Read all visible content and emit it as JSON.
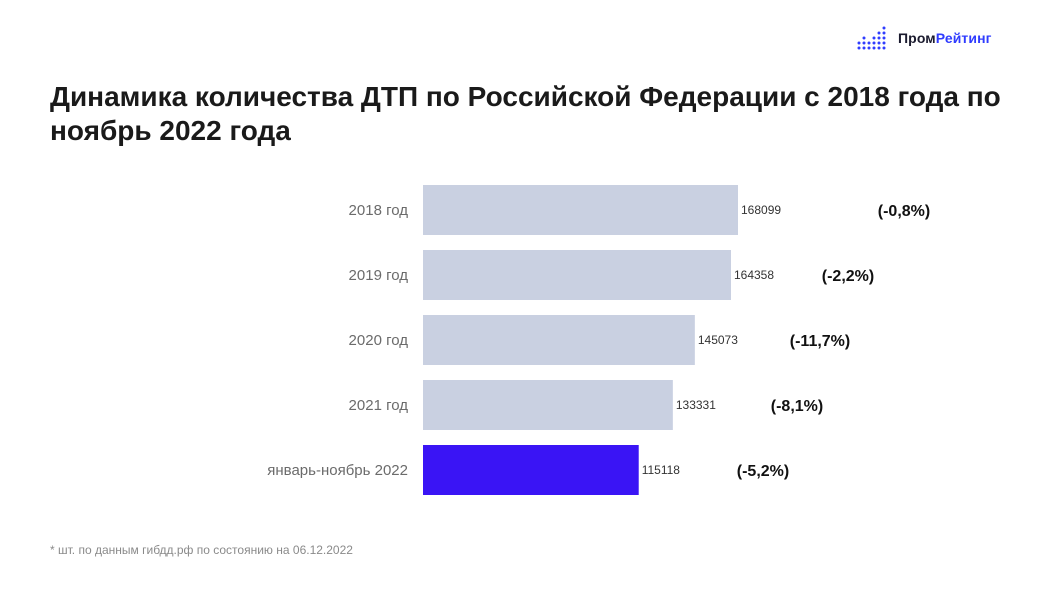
{
  "brand": {
    "name_part1": "Пром",
    "name_part2": "Рейтинг",
    "icon": "bar-dots-logo-icon",
    "accent_color": "#2f3cff"
  },
  "chart_data": {
    "type": "bar",
    "orientation": "horizontal",
    "title": "Динамика количества ДТП по Российской Федерации с 2018 года по ноябрь 2022 года",
    "categories": [
      "2018 год",
      "2019 год",
      "2020 год",
      "2021 год",
      "январь-ноябрь 2022"
    ],
    "values": [
      168099,
      164358,
      145073,
      133331,
      115118
    ],
    "change_labels": [
      "(-0,8%)",
      "(-2,2%)",
      "(-11,7%)",
      "(-8,1%)",
      "(-5,2%)"
    ],
    "bar_colors": [
      "#c9d0e1",
      "#c9d0e1",
      "#c9d0e1",
      "#c9d0e1",
      "#3a14f5"
    ],
    "xlim": [
      0,
      168099
    ],
    "grid": false,
    "legend": "none"
  },
  "footnote": "* шт. по данным гибдд.рф по состоянию на 06.12.2022"
}
